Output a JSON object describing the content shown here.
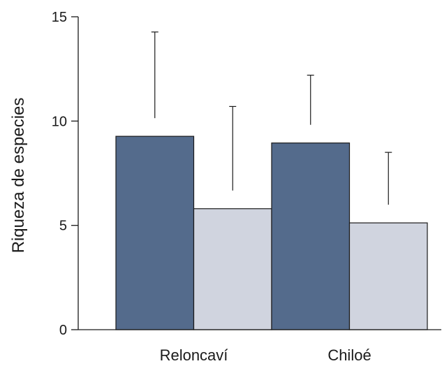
{
  "chart_data": {
    "type": "bar",
    "categories": [
      "Reloncaví",
      "Chiloé"
    ],
    "series": [
      {
        "values": [
          9.27,
          8.95
        ],
        "errors": [
          5.0,
          3.25
        ],
        "color": "#546b8c"
      },
      {
        "values": [
          5.8,
          5.12
        ],
        "errors": [
          4.9,
          3.38
        ],
        "color": "#d0d4df"
      }
    ],
    "title": "",
    "xlabel": "",
    "ylabel": "Riqueza de especies",
    "ylim": [
      0,
      15
    ],
    "yticks": [
      0,
      5,
      10,
      15
    ],
    "ytick_labels": [
      "0",
      "5",
      "10",
      "15"
    ],
    "grid": false,
    "legend": "none",
    "error_bars": "upper"
  }
}
